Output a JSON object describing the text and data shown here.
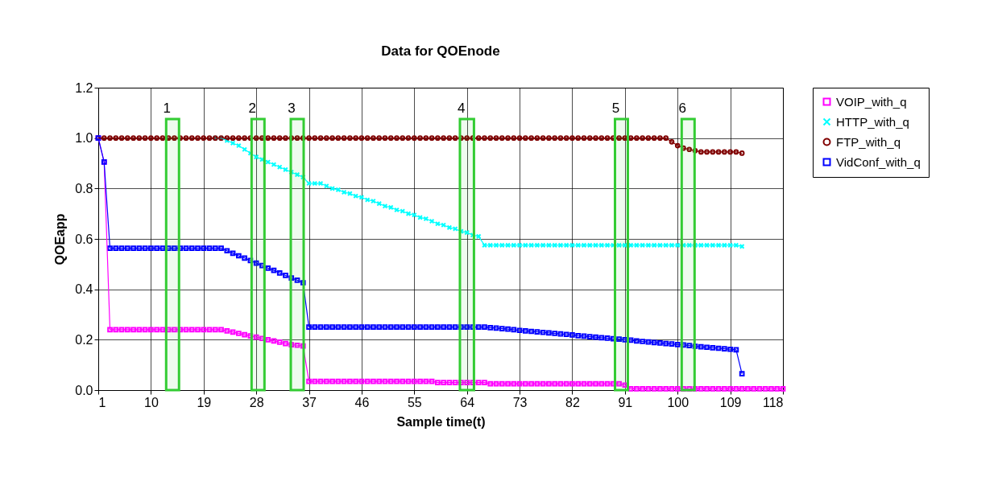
{
  "chart_data": {
    "type": "line",
    "title": "Data for QOEnode",
    "xlabel": "Sample time(t)",
    "ylabel": "QOEapp",
    "x": [
      1,
      2,
      3,
      4,
      5,
      6,
      7,
      8,
      9,
      10,
      11,
      12,
      13,
      14,
      15,
      16,
      17,
      18,
      19,
      20,
      21,
      22,
      23,
      24,
      25,
      26,
      27,
      28,
      29,
      30,
      31,
      32,
      33,
      34,
      35,
      36,
      37,
      38,
      39,
      40,
      41,
      42,
      43,
      44,
      45,
      46,
      47,
      48,
      49,
      50,
      51,
      52,
      53,
      54,
      55,
      56,
      57,
      58,
      59,
      60,
      61,
      62,
      63,
      64,
      65,
      66,
      67,
      68,
      69,
      70,
      71,
      72,
      73,
      74,
      75,
      76,
      77,
      78,
      79,
      80,
      81,
      82,
      83,
      84,
      85,
      86,
      87,
      88,
      89,
      90,
      91,
      92,
      93,
      94,
      95,
      96,
      97,
      98,
      99,
      100,
      101,
      102,
      103,
      104,
      105,
      106,
      107,
      108,
      109,
      110,
      111,
      112,
      113,
      114,
      115,
      116,
      117,
      118
    ],
    "xlim": [
      1,
      118
    ],
    "xticks": [
      1,
      10,
      19,
      28,
      37,
      46,
      55,
      64,
      73,
      82,
      91,
      100,
      109,
      118
    ],
    "ylim": [
      0,
      1.2
    ],
    "yticks": [
      {
        "value": 0,
        "label": "0.0"
      },
      {
        "value": 0.2,
        "label": "0.2"
      },
      {
        "value": 0.4,
        "label": "0.4"
      },
      {
        "value": 0.6,
        "label": "0.6"
      },
      {
        "value": 0.8,
        "label": "0.8"
      },
      {
        "value": 1.0,
        "label": "1.0"
      },
      {
        "value": 1.2,
        "label": "1.2"
      }
    ],
    "grid": true,
    "legend": "right",
    "series": [
      {
        "name": "VOIP_with_q",
        "color": "#ff00ff",
        "marker": "square",
        "line_style": "solid",
        "values": [
          1.0,
          0.905,
          0.24,
          0.24,
          0.24,
          0.24,
          0.24,
          0.24,
          0.24,
          0.24,
          0.24,
          0.24,
          0.24,
          0.24,
          0.24,
          0.24,
          0.24,
          0.24,
          0.24,
          0.24,
          0.24,
          0.24,
          0.235,
          0.23,
          0.225,
          0.22,
          0.215,
          0.21,
          0.205,
          0.2,
          0.195,
          0.19,
          0.185,
          0.18,
          0.178,
          0.175,
          0.035,
          0.035,
          0.035,
          0.035,
          0.035,
          0.035,
          0.035,
          0.035,
          0.035,
          0.035,
          0.035,
          0.035,
          0.035,
          0.035,
          0.035,
          0.035,
          0.035,
          0.035,
          0.035,
          0.035,
          0.035,
          0.035,
          0.03,
          0.03,
          0.03,
          0.03,
          0.03,
          0.03,
          0.03,
          0.03,
          0.03,
          0.025,
          0.025,
          0.025,
          0.025,
          0.025,
          0.025,
          0.025,
          0.025,
          0.025,
          0.025,
          0.025,
          0.025,
          0.025,
          0.025,
          0.025,
          0.025,
          0.025,
          0.025,
          0.025,
          0.025,
          0.025,
          0.025,
          0.025,
          0.02,
          0.005,
          0.005,
          0.005,
          0.005,
          0.005,
          0.005,
          0.005,
          0.005,
          0.005,
          0.005,
          0.005,
          0.005,
          0.005,
          0.005,
          0.005,
          0.005,
          0.005,
          0.005,
          0.005,
          0.005,
          0.005,
          0.005,
          0.005,
          0.005,
          0.005,
          0.005,
          0.005
        ]
      },
      {
        "name": "HTTP_with_q",
        "color": "#00ffff",
        "marker": "cross",
        "line_style": "solid",
        "values": [
          null,
          null,
          null,
          null,
          null,
          null,
          null,
          null,
          null,
          null,
          null,
          null,
          null,
          null,
          null,
          null,
          null,
          null,
          null,
          null,
          1.0,
          1.0,
          0.99,
          0.98,
          0.97,
          0.955,
          0.94,
          0.925,
          0.915,
          0.905,
          0.895,
          0.885,
          0.875,
          0.865,
          0.855,
          0.845,
          0.82,
          0.82,
          0.82,
          0.81,
          0.8,
          0.795,
          0.785,
          0.78,
          0.77,
          0.765,
          0.755,
          0.75,
          0.74,
          0.73,
          0.725,
          0.715,
          0.71,
          0.7,
          0.695,
          0.685,
          0.68,
          0.67,
          0.66,
          0.655,
          0.645,
          0.64,
          0.63,
          0.625,
          0.615,
          0.61,
          0.575,
          0.575,
          0.575,
          0.575,
          0.575,
          0.575,
          0.575,
          0.575,
          0.575,
          0.575,
          0.575,
          0.575,
          0.575,
          0.575,
          0.575,
          0.575,
          0.575,
          0.575,
          0.575,
          0.575,
          0.575,
          0.575,
          0.575,
          0.575,
          0.575,
          0.575,
          0.575,
          0.575,
          0.575,
          0.575,
          0.575,
          0.575,
          0.575,
          0.575,
          0.575,
          0.575,
          0.575,
          0.575,
          0.575,
          0.575,
          0.575,
          0.575,
          0.575,
          0.575,
          0.57,
          null,
          null,
          null,
          null,
          null,
          null,
          null
        ]
      },
      {
        "name": "FTP_with_q",
        "color": "#800000",
        "marker": "circle",
        "line_style": "solid",
        "values": [
          1.0,
          1.0,
          1.0,
          1.0,
          1.0,
          1.0,
          1.0,
          1.0,
          1.0,
          1.0,
          1.0,
          1.0,
          1.0,
          1.0,
          1.0,
          1.0,
          1.0,
          1.0,
          1.0,
          1.0,
          1.0,
          1.0,
          1.0,
          1.0,
          1.0,
          1.0,
          1.0,
          1.0,
          1.0,
          1.0,
          1.0,
          1.0,
          1.0,
          1.0,
          1.0,
          1.0,
          1.0,
          1.0,
          1.0,
          1.0,
          1.0,
          1.0,
          1.0,
          1.0,
          1.0,
          1.0,
          1.0,
          1.0,
          1.0,
          1.0,
          1.0,
          1.0,
          1.0,
          1.0,
          1.0,
          1.0,
          1.0,
          1.0,
          1.0,
          1.0,
          1.0,
          1.0,
          1.0,
          1.0,
          1.0,
          1.0,
          1.0,
          1.0,
          1.0,
          1.0,
          1.0,
          1.0,
          1.0,
          1.0,
          1.0,
          1.0,
          1.0,
          1.0,
          1.0,
          1.0,
          1.0,
          1.0,
          1.0,
          1.0,
          1.0,
          1.0,
          1.0,
          1.0,
          1.0,
          1.0,
          1.0,
          1.0,
          1.0,
          1.0,
          1.0,
          1.0,
          1.0,
          1.0,
          0.985,
          0.97,
          0.96,
          0.955,
          0.95,
          0.945,
          0.945,
          0.945,
          0.945,
          0.945,
          0.945,
          0.945,
          0.94,
          null,
          null,
          null,
          null,
          null,
          null,
          null
        ]
      },
      {
        "name": "VidConf_with_q",
        "color": "#0000ff",
        "marker": "square",
        "line_style": "solid",
        "values": [
          1.0,
          0.905,
          0.563,
          0.563,
          0.563,
          0.563,
          0.563,
          0.563,
          0.563,
          0.563,
          0.563,
          0.563,
          0.563,
          0.563,
          0.563,
          0.563,
          0.563,
          0.563,
          0.563,
          0.563,
          0.563,
          0.563,
          0.553,
          0.543,
          0.533,
          0.524,
          0.514,
          0.504,
          0.494,
          0.484,
          0.475,
          0.465,
          0.455,
          0.445,
          0.436,
          0.426,
          0.25,
          0.25,
          0.25,
          0.25,
          0.25,
          0.25,
          0.25,
          0.25,
          0.25,
          0.25,
          0.25,
          0.25,
          0.25,
          0.25,
          0.25,
          0.25,
          0.25,
          0.25,
          0.25,
          0.25,
          0.25,
          0.25,
          0.25,
          0.25,
          0.25,
          0.25,
          0.25,
          0.25,
          0.25,
          0.25,
          0.25,
          0.248,
          0.246,
          0.244,
          0.242,
          0.24,
          0.237,
          0.235,
          0.233,
          0.231,
          0.229,
          0.227,
          0.225,
          0.223,
          0.221,
          0.219,
          0.216,
          0.214,
          0.212,
          0.21,
          0.208,
          0.206,
          0.204,
          0.202,
          0.2,
          0.198,
          0.195,
          0.193,
          0.191,
          0.189,
          0.187,
          0.185,
          0.183,
          0.181,
          0.179,
          0.177,
          0.174,
          0.172,
          0.17,
          0.168,
          0.166,
          0.164,
          0.162,
          0.16,
          0.065,
          null,
          null,
          null,
          null,
          null,
          null,
          null
        ]
      }
    ],
    "bands": [
      {
        "axis": "x",
        "from": 12.6,
        "to": 14.8,
        "label": "1",
        "color": "#33cc33"
      },
      {
        "axis": "x",
        "from": 27.2,
        "to": 29.4,
        "label": "2",
        "color": "#33cc33"
      },
      {
        "axis": "x",
        "from": 33.9,
        "to": 36.1,
        "label": "3",
        "color": "#33cc33"
      },
      {
        "axis": "x",
        "from": 62.8,
        "to": 65.2,
        "label": "4",
        "color": "#33cc33"
      },
      {
        "axis": "x",
        "from": 89.3,
        "to": 91.5,
        "label": "5",
        "color": "#33cc33"
      },
      {
        "axis": "x",
        "from": 100.7,
        "to": 102.9,
        "label": "6",
        "color": "#33cc33"
      }
    ]
  }
}
